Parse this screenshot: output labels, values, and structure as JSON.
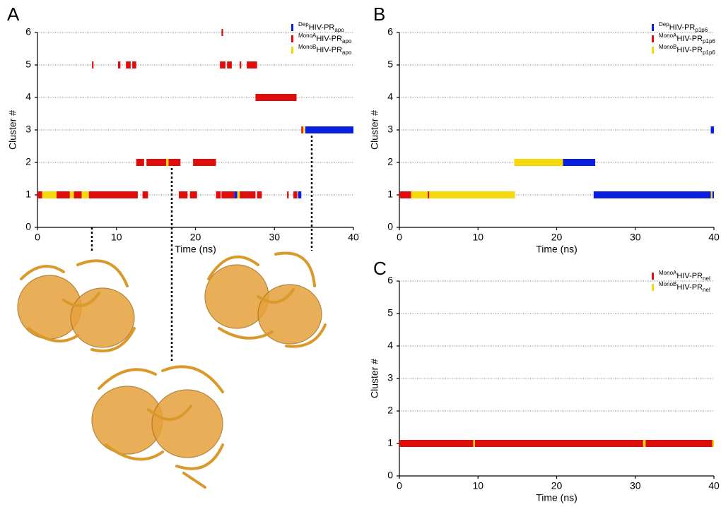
{
  "chart_data": [
    {
      "type": "timeline",
      "panel": "A",
      "xlabel": "Time (ns)",
      "ylabel": "Cluster #",
      "xlim": [
        0,
        40
      ],
      "xticks": [
        0,
        10,
        20,
        30,
        40
      ],
      "ylim": [
        0,
        6
      ],
      "yticks": [
        0,
        1,
        2,
        3,
        4,
        5,
        6
      ],
      "grid": true,
      "series": [
        {
          "name": {
            "sup": "Dep",
            "main": "HIV-PR",
            "sub": "apo"
          },
          "color": "#0a1ee0",
          "start": [
            24.9,
            33.0,
            33.9
          ],
          "end": [
            25.3,
            33.4,
            40
          ],
          "values": [
            1,
            1,
            3
          ]
        },
        {
          "name": {
            "sup": "MonoA",
            "main": "HIV-PR",
            "sub": "apo"
          },
          "color": "#e00b0b",
          "start": [
            0,
            2.4,
            4.6,
            6.5,
            13.3,
            17.9,
            19.3,
            22.6,
            23.3,
            25.6,
            27.8,
            31.6,
            32.4,
            12.5,
            13.8,
            16.6,
            19.7,
            33.4,
            27.6,
            6.9,
            10.2,
            11.2,
            12.0,
            23.1,
            24.0,
            25.6,
            26.5,
            23.3
          ],
          "end": [
            0.6,
            4.1,
            5.6,
            12.7,
            14.0,
            19.0,
            20.2,
            23.2,
            24.9,
            27.6,
            28.4,
            31.8,
            32.9,
            13.5,
            16.3,
            18.1,
            22.6,
            33.6,
            32.8,
            7.1,
            10.5,
            11.8,
            12.5,
            23.8,
            24.6,
            25.8,
            27.8,
            23.5
          ],
          "values": [
            1,
            1,
            1,
            1,
            1,
            1,
            1,
            1,
            1,
            1,
            1,
            1,
            1,
            2,
            2,
            2,
            2,
            3,
            4,
            5,
            5,
            5,
            5,
            5,
            5,
            5,
            5,
            6
          ]
        },
        {
          "name": {
            "sup": "MonoB",
            "main": "HIV-PR",
            "sub": "apo"
          },
          "color": "#f5d90a",
          "start": [
            0.6,
            4.1,
            5.6,
            25.3,
            16.3,
            33.6
          ],
          "end": [
            2.4,
            4.6,
            6.5,
            25.6,
            16.6,
            33.8
          ],
          "values": [
            1,
            1,
            1,
            1,
            2,
            3
          ]
        }
      ]
    },
    {
      "type": "timeline",
      "panel": "B",
      "xlabel": "Time (ns)",
      "ylabel": "Cluster #",
      "xlim": [
        0,
        40
      ],
      "xticks": [
        0,
        10,
        20,
        30,
        40
      ],
      "ylim": [
        0,
        6
      ],
      "yticks": [
        0,
        1,
        2,
        3,
        4,
        5,
        6
      ],
      "grid": true,
      "series": [
        {
          "name": {
            "sup": "Dep",
            "main": "HIV-PR",
            "sub": "p1p6"
          },
          "color": "#0a1ee0",
          "start": [
            24.7,
            39.8,
            20.8,
            39.6
          ],
          "end": [
            39.6,
            40,
            24.9,
            40
          ],
          "values": [
            1,
            1,
            2,
            3
          ]
        },
        {
          "name": {
            "sup": "MonoA",
            "main": "HIV-PR",
            "sub": "p1p6"
          },
          "color": "#e00b0b",
          "start": [
            0,
            3.6
          ],
          "end": [
            1.5,
            3.8
          ],
          "values": [
            1,
            1
          ]
        },
        {
          "name": {
            "sup": "MonoB",
            "main": "HIV-PR",
            "sub": "p1p6"
          },
          "color": "#f5d90a",
          "start": [
            1.5,
            3.8,
            39.6,
            14.6
          ],
          "end": [
            3.6,
            14.7,
            39.8,
            20.8
          ],
          "values": [
            1,
            1,
            1,
            2
          ]
        }
      ]
    },
    {
      "type": "timeline",
      "panel": "C",
      "xlabel": "Time (ns)",
      "ylabel": "Cluster #",
      "xlim": [
        0,
        40
      ],
      "xticks": [
        0,
        10,
        20,
        30,
        40
      ],
      "ylim": [
        0,
        6
      ],
      "yticks": [
        0,
        1,
        2,
        3,
        4,
        5,
        6
      ],
      "grid": true,
      "series": [
        {
          "name": {
            "sup": "MonoA",
            "main": "HIV-PR",
            "sub": "nel"
          },
          "color": "#e00b0b",
          "start": [
            0,
            9.6,
            31.3
          ],
          "end": [
            9.4,
            31.0,
            39.8
          ],
          "values": [
            1,
            1,
            1
          ]
        },
        {
          "name": {
            "sup": "MonoB",
            "main": "HIV-PR",
            "sub": "nel"
          },
          "color": "#f5d90a",
          "start": [
            9.4,
            31.0,
            39.8
          ],
          "end": [
            9.6,
            31.3,
            40
          ],
          "values": [
            1,
            1,
            1
          ]
        }
      ]
    }
  ]
}
